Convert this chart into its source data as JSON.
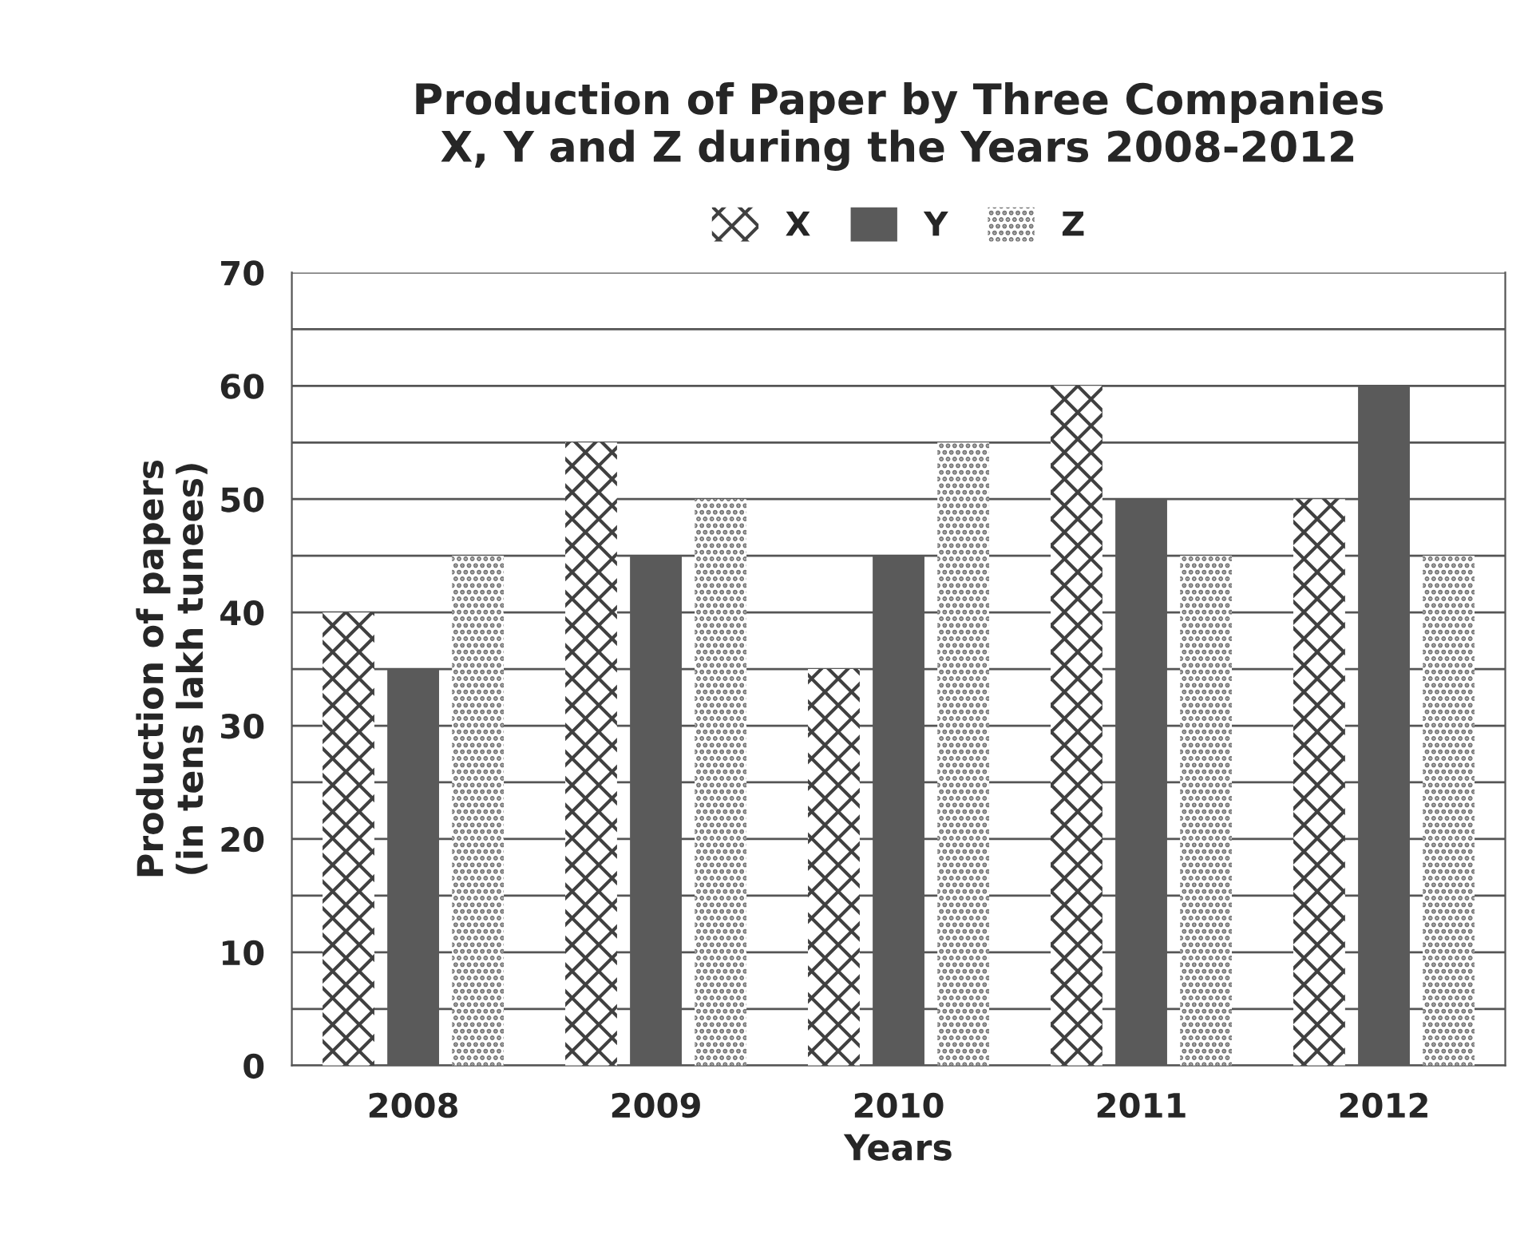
{
  "chart_data": {
    "type": "bar",
    "title": "Production of Paper by Three Companies\nX, Y and Z during the Years 2008-2012",
    "xlabel": "Years",
    "ylabel": "Production of papers\n(in tens lakh tunees)",
    "categories": [
      "2008",
      "2009",
      "2010",
      "2011",
      "2012"
    ],
    "series": [
      {
        "name": "X",
        "color": "#404040",
        "values": [
          40,
          55,
          35,
          60,
          50
        ]
      },
      {
        "name": "Y",
        "color": "#5a5a5a",
        "values": [
          35,
          45,
          45,
          50,
          60
        ]
      },
      {
        "name": "Z",
        "color": "#707070",
        "values": [
          45,
          50,
          55,
          45,
          45
        ]
      }
    ],
    "ylim": [
      0,
      70
    ],
    "yticks": [
      0,
      {
        "value": 5,
        "label": null
      },
      10,
      {
        "value": 15,
        "label": null
      },
      20,
      {
        "value": 25,
        "label": null
      },
      30,
      {
        "value": 35,
        "label": null
      },
      40,
      {
        "value": 45,
        "label": null
      },
      50,
      {
        "value": 55,
        "label": null
      },
      60,
      {
        "value": 65,
        "label": null
      },
      70
    ],
    "grid": "y",
    "legend": "top"
  }
}
